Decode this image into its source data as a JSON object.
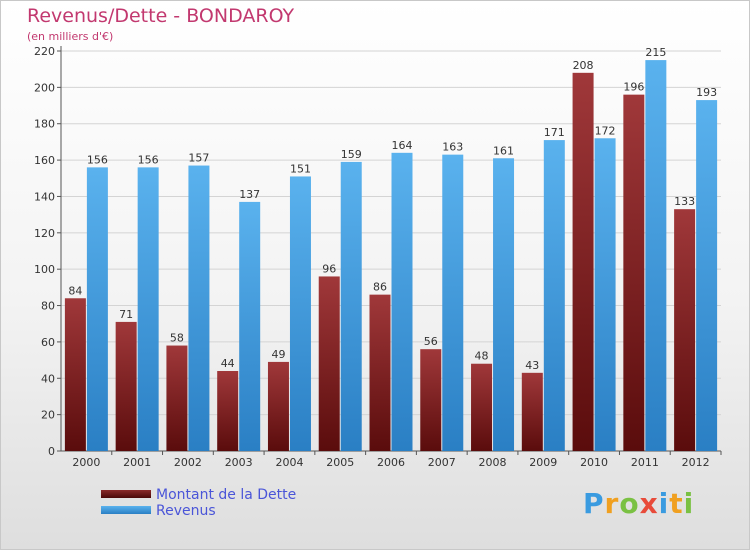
{
  "title": "Revenus/Dette - BONDAROY",
  "subtitle": "(en milliers d'€)",
  "logo": {
    "text": "Proxiti",
    "letters": [
      "P",
      "r",
      "o",
      "x",
      "i",
      "t",
      "i"
    ],
    "colors": [
      "#3a9be0",
      "#f0a020",
      "#7ac143",
      "#e84b3a",
      "#3a9be0",
      "#f0a020",
      "#7ac143"
    ]
  },
  "chart_data": {
    "type": "bar",
    "title": "Revenus/Dette - BONDAROY",
    "ylabel": "(en milliers d'€)",
    "categories": [
      "2000",
      "2001",
      "2002",
      "2003",
      "2004",
      "2005",
      "2006",
      "2007",
      "2008",
      "2009",
      "2010",
      "2011",
      "2012"
    ],
    "ylim": [
      0,
      220
    ],
    "yticks": [
      0,
      20,
      40,
      60,
      80,
      100,
      120,
      140,
      160,
      180,
      200,
      220
    ],
    "grid": true,
    "legend": "bottom-left",
    "series": [
      {
        "name": "Montant de la Dette",
        "color": "#7a1a1a",
        "values": [
          84,
          71,
          58,
          44,
          49,
          96,
          86,
          56,
          48,
          43,
          208,
          196,
          133
        ]
      },
      {
        "name": "Revenus",
        "color": "#3a96dc",
        "values": [
          156,
          156,
          157,
          137,
          151,
          159,
          164,
          163,
          161,
          171,
          172,
          215,
          193
        ]
      }
    ]
  }
}
